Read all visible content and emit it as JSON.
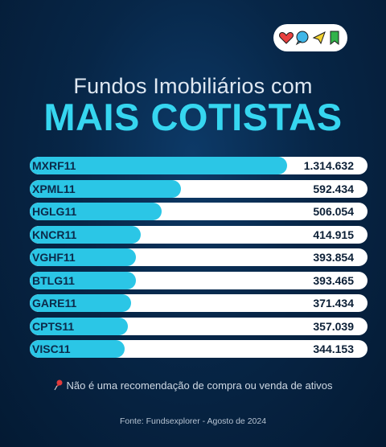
{
  "header": {
    "subtitle": "Fundos Imobiliários com",
    "title": "MAIS COTISTAS"
  },
  "icons": [
    "heart-icon",
    "chat-bubble-icon",
    "paper-plane-icon",
    "bookmark-icon"
  ],
  "colors": {
    "background": "#072647",
    "accent": "#2bc6e6",
    "title": "#36d6f0",
    "track": "#ffffff"
  },
  "chart_data": {
    "type": "bar",
    "orientation": "horizontal",
    "categories": [
      "MXRF11",
      "XPML11",
      "HGLG11",
      "KNCR11",
      "VGHF11",
      "BTLG11",
      "GARE11",
      "CPTS11",
      "VISC11"
    ],
    "values": [
      1314632,
      592434,
      506054,
      414915,
      393854,
      393465,
      371434,
      357039,
      344153
    ],
    "value_labels": [
      "1.314.632",
      "592.434",
      "506.054",
      "414.915",
      "393.854",
      "393.465",
      "371.434",
      "357.039",
      "344.153"
    ],
    "title": "MAIS COTISTAS",
    "subtitle": "Fundos Imobiliários com"
  },
  "footer": {
    "disclaimer": "Não é uma recomendação de compra ou venda de ativos",
    "source": "Fonte: Fundsexplorer - Agosto de 2024"
  }
}
